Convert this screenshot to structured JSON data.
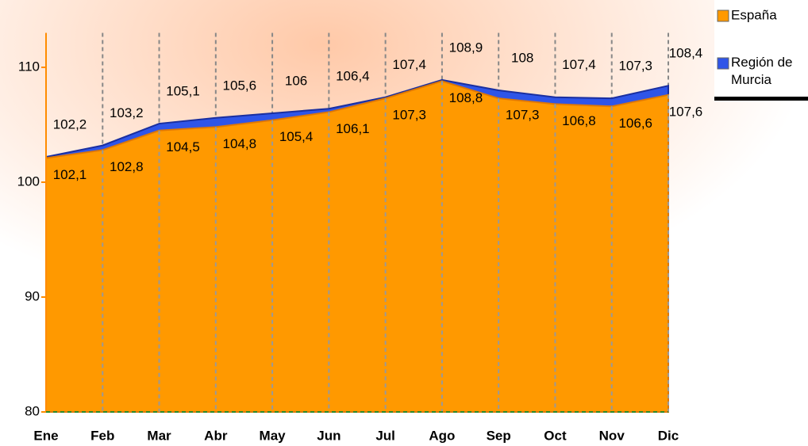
{
  "chart_data": {
    "type": "area",
    "categories": [
      "Ene",
      "Feb",
      "Mar",
      "Abr",
      "May",
      "Jun",
      "Jul",
      "Ago",
      "Sep",
      "Oct",
      "Nov",
      "Dic"
    ],
    "series": [
      {
        "name": "Región de Murcia",
        "color": "#2f55e8",
        "values": [
          102.2,
          103.2,
          105.1,
          105.6,
          106,
          106.4,
          107.4,
          108.9,
          108,
          107.4,
          107.3,
          108.4
        ],
        "value_labels": [
          "102,2",
          "103,2",
          "105,1",
          "105,6",
          "106",
          "106,4",
          "107,4",
          "108,9",
          "108",
          "107,4",
          "107,3",
          "108,4"
        ]
      },
      {
        "name": "España",
        "color": "#ff9900",
        "values": [
          102.1,
          102.8,
          104.5,
          104.8,
          105.4,
          106.1,
          107.3,
          108.8,
          107.3,
          106.8,
          106.6,
          107.6
        ],
        "value_labels": [
          "102,1",
          "102,8",
          "104,5",
          "104,8",
          "105,4",
          "106,1",
          "107,3",
          "108,8",
          "107,3",
          "106,8",
          "106,6",
          "107,6"
        ]
      }
    ],
    "ylim": [
      80,
      113
    ],
    "yticks": [
      80,
      90,
      100,
      110
    ],
    "grid": true,
    "legend": "top-right"
  }
}
